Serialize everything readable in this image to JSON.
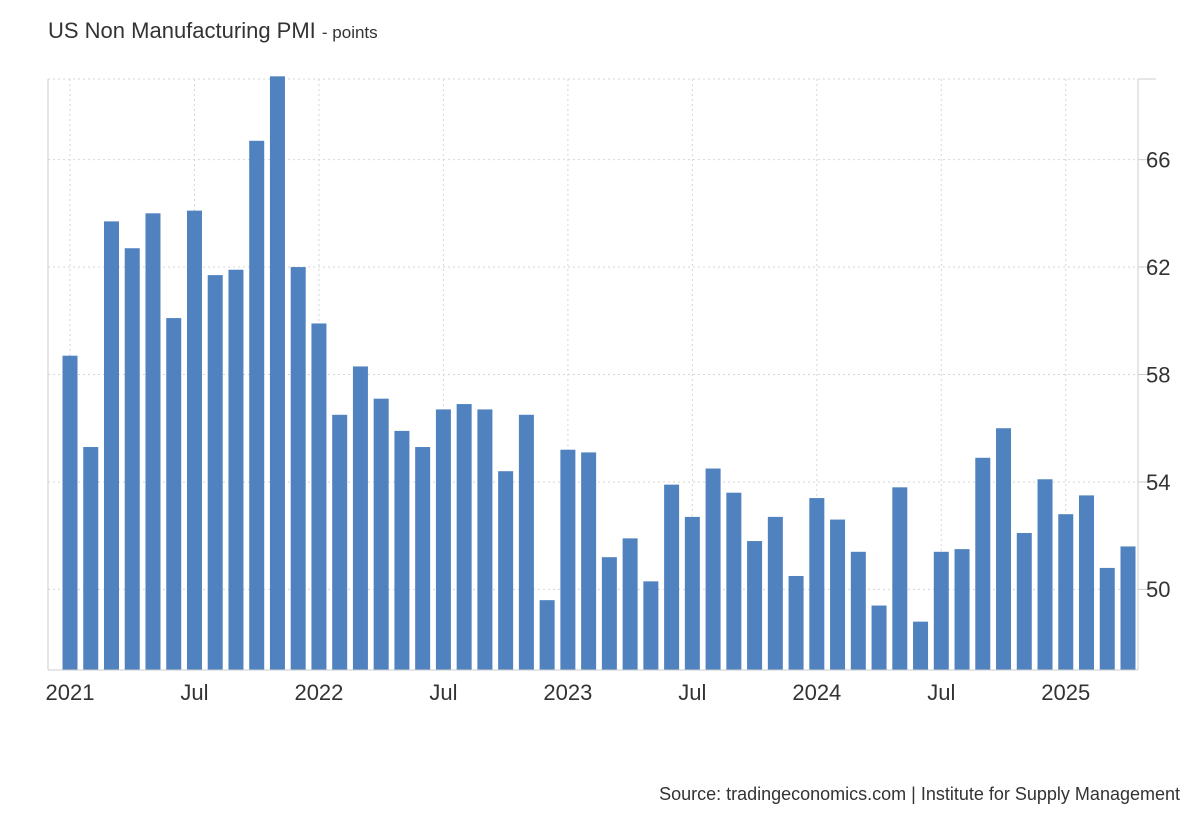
{
  "header": {
    "title": "US Non Manufacturing PMI",
    "unit": "- points"
  },
  "source": "Source: tradingeconomics.com | Institute for Supply Management",
  "chart_data": {
    "type": "bar",
    "title": "US Non Manufacturing PMI",
    "subtitle": "points",
    "color": "#5082bf",
    "grid": true,
    "y_axis_side": "right",
    "ylim": [
      47,
      69
    ],
    "yticks": [
      50,
      54,
      58,
      62,
      66
    ],
    "xticks": [
      {
        "label": "2021",
        "index": 0
      },
      {
        "label": "Jul",
        "index": 6
      },
      {
        "label": "2022",
        "index": 12
      },
      {
        "label": "Jul",
        "index": 18
      },
      {
        "label": "2023",
        "index": 24
      },
      {
        "label": "Jul",
        "index": 30
      },
      {
        "label": "2024",
        "index": 36
      },
      {
        "label": "Jul",
        "index": 42
      },
      {
        "label": "2025",
        "index": 48
      }
    ],
    "categories": [
      "2021-01",
      "2021-02",
      "2021-03",
      "2021-04",
      "2021-05",
      "2021-06",
      "2021-07",
      "2021-08",
      "2021-09",
      "2021-10",
      "2021-11",
      "2021-12",
      "2022-01",
      "2022-02",
      "2022-03",
      "2022-04",
      "2022-05",
      "2022-06",
      "2022-07",
      "2022-08",
      "2022-09",
      "2022-10",
      "2022-11",
      "2022-12",
      "2023-01",
      "2023-02",
      "2023-03",
      "2023-04",
      "2023-05",
      "2023-06",
      "2023-07",
      "2023-08",
      "2023-09",
      "2023-10",
      "2023-11",
      "2023-12",
      "2024-01",
      "2024-02",
      "2024-03",
      "2024-04",
      "2024-05",
      "2024-06",
      "2024-07",
      "2024-08",
      "2024-09",
      "2024-10",
      "2024-11",
      "2024-12",
      "2025-01",
      "2025-02",
      "2025-03",
      "2025-04"
    ],
    "values": [
      58.7,
      55.3,
      63.7,
      62.7,
      64.0,
      60.1,
      64.1,
      61.7,
      61.9,
      66.7,
      69.1,
      62.0,
      59.9,
      56.5,
      58.3,
      57.1,
      55.9,
      55.3,
      56.7,
      56.9,
      56.7,
      54.4,
      56.5,
      49.6,
      55.2,
      55.1,
      51.2,
      51.9,
      50.3,
      53.9,
      52.7,
      54.5,
      53.6,
      51.8,
      52.7,
      50.5,
      53.4,
      52.6,
      51.4,
      49.4,
      53.8,
      48.8,
      51.4,
      51.5,
      54.9,
      56.0,
      52.1,
      54.1,
      52.8,
      53.5,
      50.8,
      51.6
    ]
  }
}
